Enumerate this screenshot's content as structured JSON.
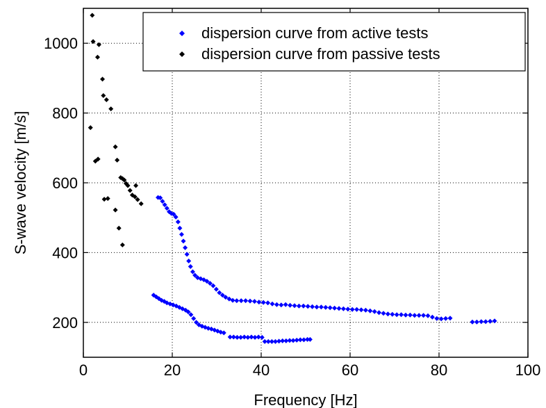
{
  "chart_data": {
    "type": "scatter",
    "xlabel": "Frequency [Hz]",
    "ylabel": "S-wave velocity [m/s]",
    "xlim": [
      0,
      100
    ],
    "ylim": [
      100,
      1100
    ],
    "xticks": [
      0,
      20,
      40,
      60,
      80,
      100
    ],
    "yticks": [
      200,
      400,
      600,
      800,
      1000
    ],
    "xtick_labels": [
      "0",
      "20",
      "40",
      "60",
      "80",
      "100"
    ],
    "ytick_labels": [
      "200",
      "400",
      "600",
      "800",
      "1000"
    ],
    "grid": true,
    "legend_position": "top-right",
    "series": [
      {
        "name": "dispersion curve from active tests",
        "color": "#0000ff",
        "marker": "diamond",
        "points": [
          [
            16.8,
            558
          ],
          [
            17.3,
            557
          ],
          [
            17.8,
            547
          ],
          [
            18.3,
            537
          ],
          [
            18.8,
            527
          ],
          [
            19.3,
            517
          ],
          [
            19.8,
            512
          ],
          [
            20.3,
            510
          ],
          [
            20.8,
            502
          ],
          [
            21.3,
            488
          ],
          [
            21.7,
            470
          ],
          [
            22.1,
            452
          ],
          [
            22.5,
            433
          ],
          [
            22.9,
            414
          ],
          [
            23.3,
            395
          ],
          [
            23.7,
            376
          ],
          [
            24.1,
            360
          ],
          [
            24.6,
            345
          ],
          [
            25.1,
            335
          ],
          [
            25.7,
            328
          ],
          [
            26.4,
            325
          ],
          [
            27.1,
            322
          ],
          [
            27.8,
            318
          ],
          [
            28.5,
            312
          ],
          [
            29.2,
            305
          ],
          [
            29.9,
            295
          ],
          [
            30.6,
            285
          ],
          [
            31.3,
            278
          ],
          [
            32.0,
            272
          ],
          [
            32.8,
            267
          ],
          [
            33.6,
            263
          ],
          [
            34.5,
            262
          ],
          [
            35.5,
            262
          ],
          [
            36.5,
            262
          ],
          [
            37.5,
            261
          ],
          [
            38.5,
            260
          ],
          [
            39.5,
            258
          ],
          [
            40.5,
            257
          ],
          [
            41.5,
            256
          ],
          [
            42.5,
            253
          ],
          [
            43.5,
            251
          ],
          [
            44.5,
            250
          ],
          [
            45.5,
            251
          ],
          [
            46.5,
            249
          ],
          [
            47.5,
            248
          ],
          [
            48.5,
            247
          ],
          [
            49.5,
            247
          ],
          [
            50.5,
            246
          ],
          [
            51.5,
            245
          ],
          [
            52.5,
            244
          ],
          [
            53.5,
            244
          ],
          [
            54.5,
            243
          ],
          [
            55.5,
            242
          ],
          [
            56.5,
            241
          ],
          [
            57.5,
            240
          ],
          [
            58.5,
            239
          ],
          [
            59.5,
            238
          ],
          [
            60.5,
            237
          ],
          [
            61.5,
            237
          ],
          [
            62.5,
            236
          ],
          [
            63.5,
            235
          ],
          [
            64.5,
            233
          ],
          [
            65.5,
            231
          ],
          [
            66.5,
            228
          ],
          [
            67.5,
            226
          ],
          [
            68.5,
            224
          ],
          [
            69.5,
            223
          ],
          [
            70.5,
            222
          ],
          [
            71.5,
            222
          ],
          [
            72.5,
            221
          ],
          [
            73.5,
            221
          ],
          [
            74.5,
            220
          ],
          [
            75.5,
            220
          ],
          [
            76.5,
            220
          ],
          [
            77.5,
            219
          ],
          [
            78.5,
            215
          ],
          [
            79.5,
            211
          ],
          [
            80.5,
            210
          ],
          [
            81.5,
            211
          ],
          [
            82.5,
            212
          ],
          [
            87.5,
            201
          ],
          [
            88.5,
            201
          ],
          [
            89.5,
            202
          ],
          [
            90.5,
            202
          ],
          [
            91.5,
            203
          ],
          [
            92.5,
            204
          ],
          [
            15.8,
            278
          ],
          [
            16.4,
            273
          ],
          [
            17.0,
            268
          ],
          [
            17.6,
            263
          ],
          [
            18.2,
            260
          ],
          [
            18.8,
            256
          ],
          [
            19.5,
            253
          ],
          [
            20.2,
            250
          ],
          [
            20.9,
            247
          ],
          [
            21.6,
            243
          ],
          [
            22.3,
            239
          ],
          [
            23.0,
            235
          ],
          [
            23.6,
            230
          ],
          [
            24.2,
            222
          ],
          [
            24.8,
            211
          ],
          [
            25.4,
            200
          ],
          [
            26.0,
            193
          ],
          [
            26.7,
            189
          ],
          [
            27.4,
            186
          ],
          [
            28.1,
            183
          ],
          [
            28.8,
            181
          ],
          [
            29.5,
            178
          ],
          [
            30.2,
            175
          ],
          [
            30.9,
            172
          ],
          [
            31.6,
            170
          ],
          [
            33.0,
            158
          ],
          [
            33.8,
            158
          ],
          [
            34.6,
            157
          ],
          [
            35.4,
            157
          ],
          [
            36.2,
            158
          ],
          [
            37.0,
            157
          ],
          [
            37.8,
            158
          ],
          [
            38.6,
            157
          ],
          [
            39.4,
            158
          ],
          [
            40.2,
            157
          ],
          [
            40.8,
            145
          ],
          [
            41.6,
            145
          ],
          [
            42.4,
            145
          ],
          [
            43.2,
            145
          ],
          [
            44.0,
            146
          ],
          [
            44.8,
            147
          ],
          [
            45.6,
            147
          ],
          [
            46.4,
            148
          ],
          [
            47.2,
            148
          ],
          [
            48.0,
            149
          ],
          [
            48.8,
            150
          ],
          [
            49.6,
            150
          ],
          [
            50.4,
            151
          ],
          [
            51.0,
            151
          ]
        ]
      },
      {
        "name": "dispersion curve from passive tests",
        "color": "#000000",
        "marker": "diamond",
        "points": [
          [
            2.0,
            1080
          ],
          [
            2.2,
            1005
          ],
          [
            3.5,
            996
          ],
          [
            3.2,
            960
          ],
          [
            4.3,
            897
          ],
          [
            4.5,
            850
          ],
          [
            5.2,
            838
          ],
          [
            6.2,
            812
          ],
          [
            1.6,
            758
          ],
          [
            7.2,
            703
          ],
          [
            3.3,
            668
          ],
          [
            2.7,
            662
          ],
          [
            7.6,
            665
          ],
          [
            8.4,
            615
          ],
          [
            8.8,
            612
          ],
          [
            9.2,
            608
          ],
          [
            9.6,
            598
          ],
          [
            10.0,
            592
          ],
          [
            11.8,
            592
          ],
          [
            10.5,
            578
          ],
          [
            11.0,
            565
          ],
          [
            11.6,
            560
          ],
          [
            12.2,
            552
          ],
          [
            13.0,
            540
          ],
          [
            5.5,
            555
          ],
          [
            4.7,
            553
          ],
          [
            7.2,
            522
          ],
          [
            8.0,
            470
          ],
          [
            8.8,
            422
          ]
        ]
      }
    ]
  }
}
